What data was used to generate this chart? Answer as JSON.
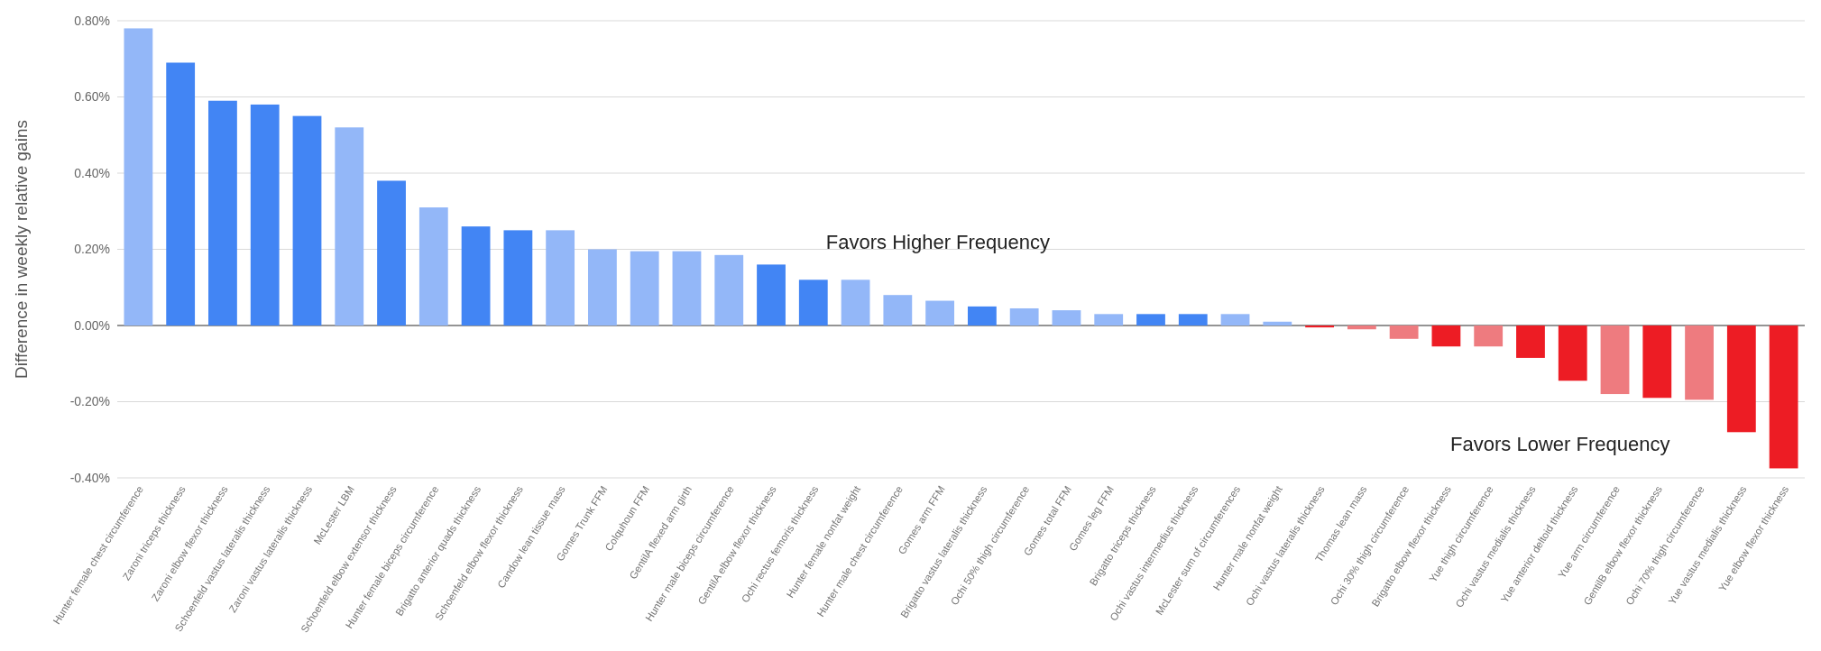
{
  "chart_data": {
    "type": "bar",
    "ylabel": "Difference in weekly relative gains",
    "categories": [
      "Hunter female chest circumference",
      "Zaroni triceps thickness",
      "Zaroni elbow flexor thickness",
      "Schoenfeld vastus lateralis thickness",
      "Zaroni vastus lateralis thickness",
      "McLester LBM",
      "Schoenfeld elbow extensor thickness",
      "Hunter female biceps circumference",
      "Brigatto anterior quads thickness",
      "Schoenfeld elbow flexor thickness",
      "Candow lean tissue mass",
      "Gomes Trunk FFM",
      "Colquhoun FFM",
      "GentilA flexed arm girth",
      "Hunter male biceps circumference",
      "GentilA elbow flexor thickness",
      "Ochi rectus femoris thickness",
      "Hunter female nonfat weight",
      "Hunter male chest circumference",
      "Gomes arm FFM",
      "Brigatto vastus lateralis thickness",
      "Ochi 50% thigh circumference",
      "Gomes total FFM",
      "Gomes leg FFM",
      "Brigatto triceps thickness",
      "Ochi vastus intermedius thickness",
      "McLester sum of circumferences",
      "Hunter male nonfat weight",
      "Ochi vastus lateralis thickness",
      "Thomas lean mass",
      "Ochi 30% thigh circumference",
      "Brigatto elbow flexor thickness",
      "Yue thigh circumference",
      "Ochi vastus medialis thickness",
      "Yue anterior deltoid thickness",
      "Yue arm circumference",
      "GentilB elbow flexor thickness",
      "Ochi 70% thigh circumference",
      "Yue vastus medialis thickness",
      "Yue elbow flexor thickness"
    ],
    "values": [
      0.78,
      0.69,
      0.59,
      0.58,
      0.55,
      0.52,
      0.38,
      0.31,
      0.26,
      0.25,
      0.25,
      0.2,
      0.195,
      0.195,
      0.185,
      0.16,
      0.12,
      0.12,
      0.08,
      0.065,
      0.05,
      0.045,
      0.04,
      0.03,
      0.03,
      0.03,
      0.03,
      0.01,
      -0.005,
      -0.01,
      -0.035,
      -0.055,
      -0.055,
      -0.085,
      -0.145,
      -0.18,
      -0.19,
      -0.195,
      -0.28,
      -0.375
    ],
    "colors": [
      "#93b7f8",
      "#4285f4",
      "#4285f4",
      "#4285f4",
      "#4285f4",
      "#93b7f8",
      "#4285f4",
      "#93b7f8",
      "#4285f4",
      "#4285f4",
      "#93b7f8",
      "#93b7f8",
      "#93b7f8",
      "#93b7f8",
      "#93b7f8",
      "#4285f4",
      "#4285f4",
      "#93b7f8",
      "#93b7f8",
      "#93b7f8",
      "#4285f4",
      "#93b7f8",
      "#93b7f8",
      "#93b7f8",
      "#4285f4",
      "#4285f4",
      "#93b7f8",
      "#93b7f8",
      "#ed1c24",
      "#ee7b7f",
      "#ee7b7f",
      "#ed1c24",
      "#ee7b7f",
      "#ed1c24",
      "#ed1c24",
      "#ee7b7f",
      "#ed1c24",
      "#ee7b7f",
      "#ed1c24",
      "#ed1c24"
    ],
    "ylim": [
      -0.4,
      0.8
    ],
    "yticks": [
      {
        "value": -0.4,
        "label": "-0.40%"
      },
      {
        "value": -0.2,
        "label": "-0.20%"
      },
      {
        "value": 0,
        "label": "0.00%"
      },
      {
        "value": 0.2,
        "label": "0.20%"
      },
      {
        "value": 0.4,
        "label": "0.40%"
      },
      {
        "value": 0.6,
        "label": "0.60%"
      },
      {
        "value": 0.8,
        "label": "0.80%"
      }
    ],
    "grid": "y",
    "annotations": [
      "Favors Higher Frequency",
      "Favors Lower Frequency"
    ]
  }
}
